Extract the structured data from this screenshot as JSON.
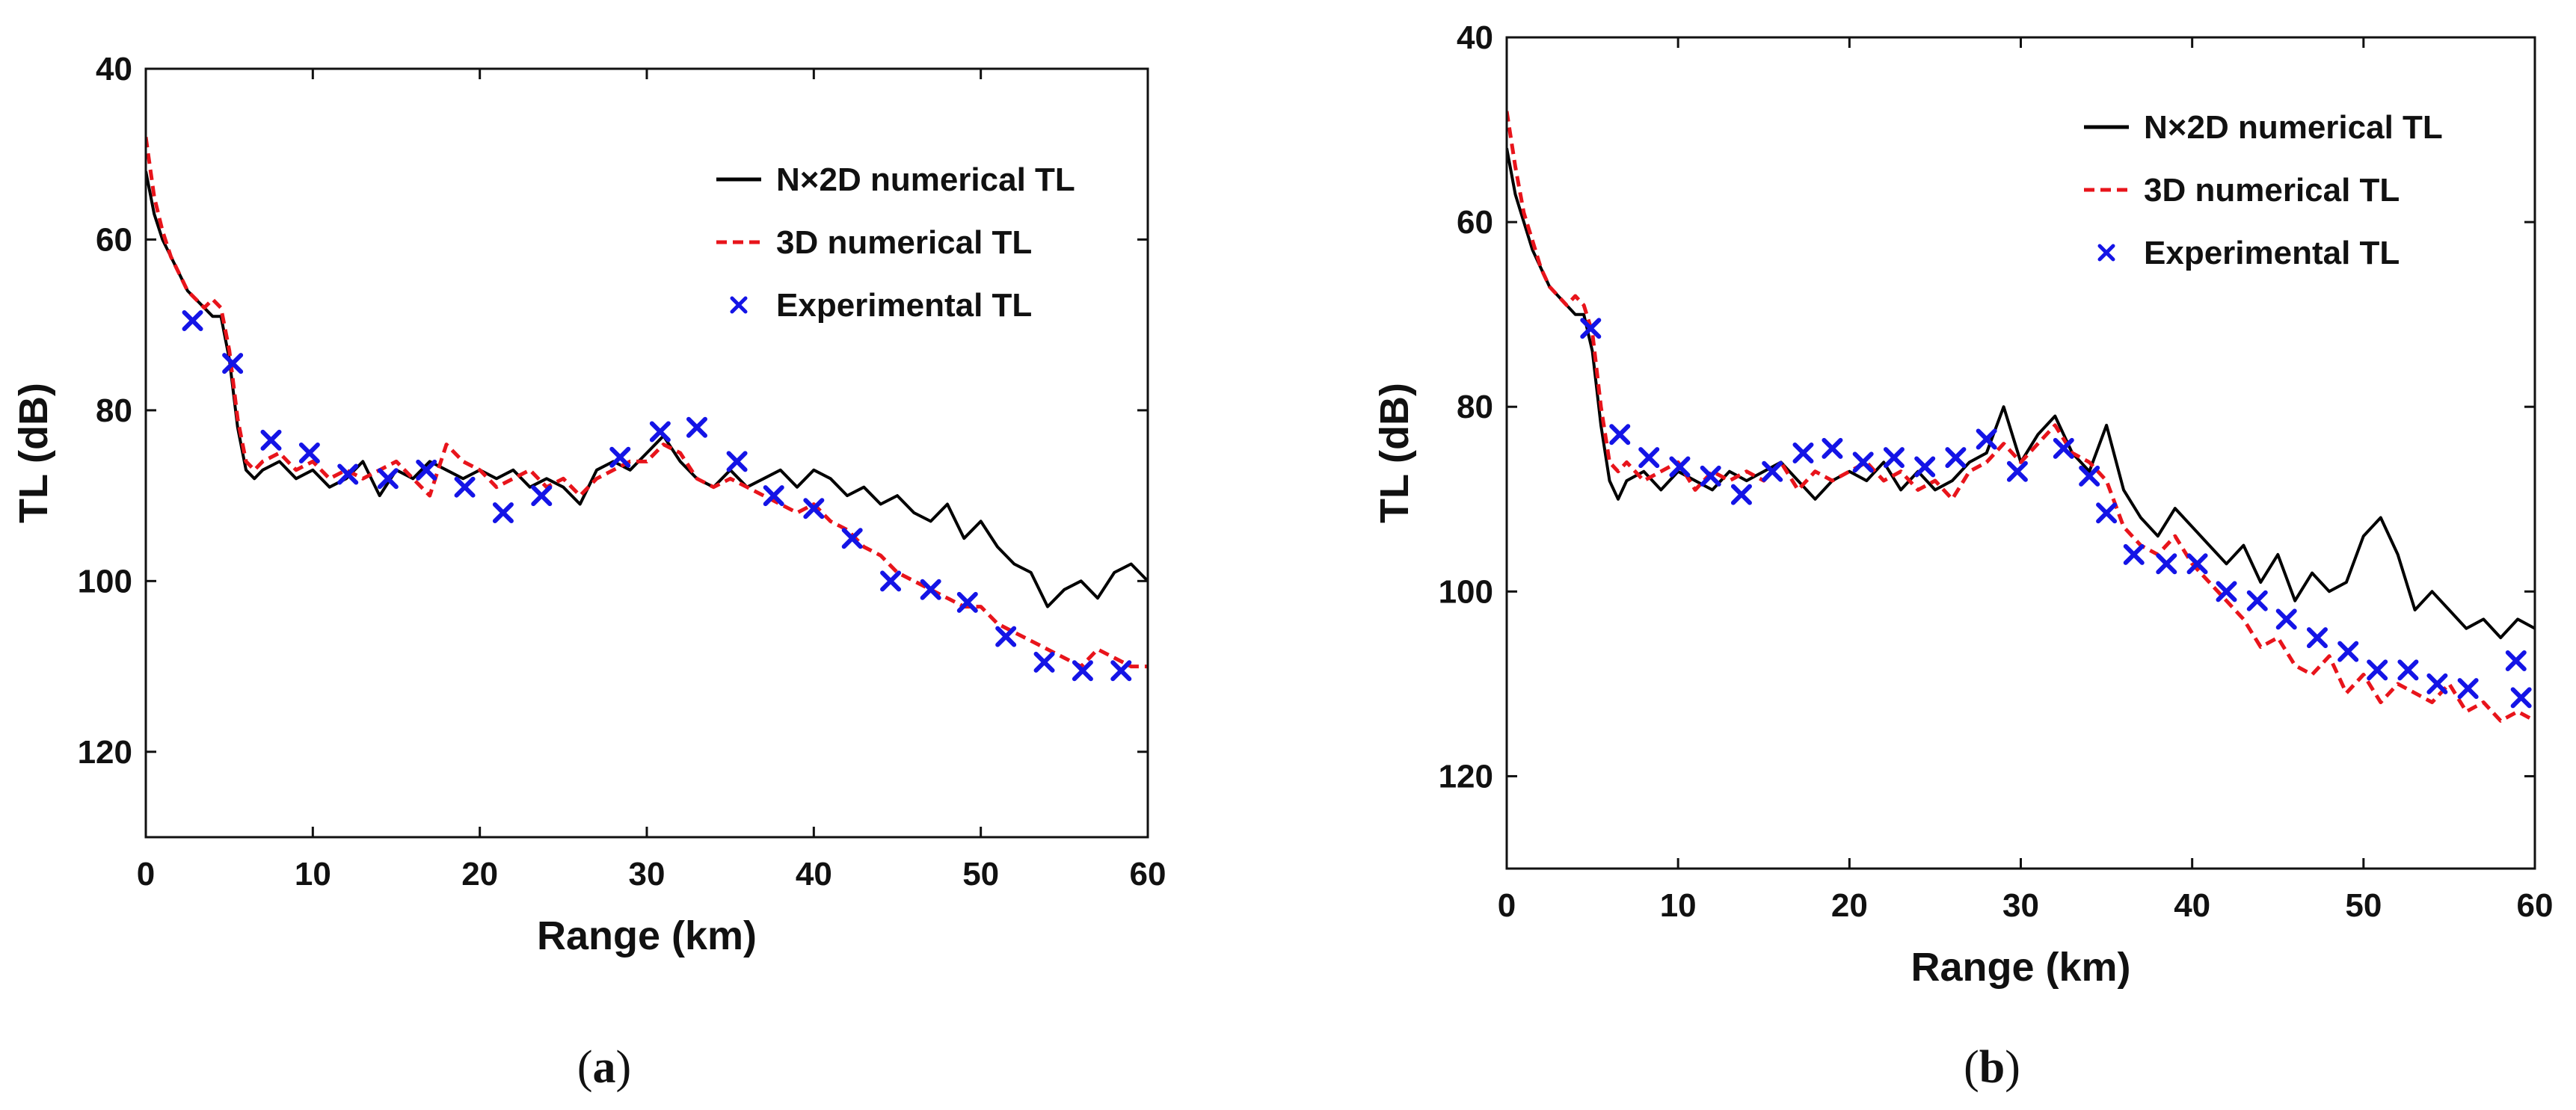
{
  "chart_data": [
    {
      "panel": "a",
      "caption_open": "(",
      "caption_letter": "a",
      "caption_close": ")",
      "type": "line",
      "xlabel": "Range (km)",
      "ylabel": "TL (dB)",
      "xlim": [
        0,
        60
      ],
      "ylim": [
        40,
        130
      ],
      "y_inverted": true,
      "xticks": [
        0,
        10,
        20,
        30,
        40,
        50,
        60
      ],
      "yticks": [
        40,
        60,
        80,
        100,
        120
      ],
      "legend_position": "top-right",
      "series": [
        {
          "name": "N×2D numerical TL",
          "style": "solid",
          "color": "#000000",
          "x": [
            0,
            0.5,
            1,
            1.5,
            2,
            2.5,
            3,
            3.5,
            4,
            4.5,
            5,
            5.5,
            6,
            6.5,
            7,
            8,
            9,
            10,
            11,
            12,
            13,
            14,
            15,
            16,
            17,
            18,
            19,
            20,
            21,
            22,
            23,
            24,
            25,
            26,
            27,
            28,
            29,
            30,
            31,
            32,
            33,
            34,
            35,
            36,
            37,
            38,
            39,
            40,
            41,
            42,
            43,
            44,
            45,
            46,
            47,
            48,
            49,
            50,
            51,
            52,
            53,
            54,
            55,
            56,
            57,
            58,
            59,
            60
          ],
          "y": [
            52,
            57,
            60,
            62,
            64,
            66,
            67,
            68,
            69,
            69,
            74,
            82,
            87,
            88,
            87,
            86,
            88,
            87,
            89,
            88,
            86,
            90,
            87,
            88,
            86,
            87,
            88,
            87,
            88,
            87,
            89,
            88,
            89,
            91,
            87,
            86,
            87,
            85,
            83,
            86,
            88,
            89,
            87,
            89,
            88,
            87,
            89,
            87,
            88,
            90,
            89,
            91,
            90,
            92,
            93,
            91,
            95,
            93,
            96,
            98,
            99,
            103,
            101,
            100,
            102,
            99,
            98,
            100
          ]
        },
        {
          "name": "3D numerical TL",
          "style": "dashed",
          "color": "#e8141b",
          "x": [
            0,
            0.5,
            1,
            1.5,
            2,
            2.5,
            3,
            3.5,
            4,
            4.5,
            5,
            5.5,
            6,
            6.5,
            7,
            8,
            9,
            10,
            11,
            12,
            13,
            14,
            15,
            16,
            17,
            18,
            19,
            20,
            21,
            22,
            23,
            24,
            25,
            26,
            27,
            28,
            29,
            30,
            31,
            32,
            33,
            34,
            35,
            36,
            37,
            38,
            39,
            40,
            41,
            42,
            43,
            44,
            45,
            46,
            47,
            48,
            49,
            50,
            51,
            52,
            53,
            54,
            55,
            56,
            57,
            58,
            59,
            60
          ],
          "y": [
            48,
            55,
            59,
            62,
            64,
            66,
            67,
            68,
            67,
            68,
            73,
            81,
            86,
            87,
            86,
            85,
            87,
            86,
            88,
            87,
            88,
            87,
            86,
            88,
            90,
            84,
            86,
            87,
            89,
            88,
            87,
            89,
            88,
            90,
            88,
            87,
            86,
            86,
            84,
            85,
            88,
            89,
            88,
            89,
            90,
            91,
            92,
            91,
            93,
            94,
            96,
            97,
            99,
            100,
            101,
            102,
            103,
            103,
            105,
            106,
            107,
            108,
            109,
            110,
            108,
            109,
            110,
            110
          ]
        },
        {
          "name": "Experimental TL",
          "style": "markers-x",
          "color": "#1414e6",
          "x": [
            2.8,
            5.2,
            7.5,
            9.8,
            12.1,
            14.5,
            16.8,
            19.1,
            21.4,
            23.7,
            28.4,
            30.8,
            33.0,
            35.4,
            37.6,
            40.0,
            42.3,
            44.6,
            47.0,
            49.2,
            51.5,
            53.8,
            56.1,
            58.4
          ],
          "y": [
            69.5,
            74.5,
            83.5,
            85,
            87.5,
            88,
            87,
            89,
            92,
            90,
            85.5,
            82.5,
            82,
            86,
            90,
            91.5,
            95,
            100,
            101,
            102.5,
            106.5,
            109.5,
            110.5,
            110.5
          ]
        }
      ]
    },
    {
      "panel": "b",
      "caption_open": "(",
      "caption_letter": "b",
      "caption_close": ")",
      "type": "line",
      "xlabel": "Range (km)",
      "ylabel": "TL (dB)",
      "xlim": [
        0,
        60
      ],
      "ylim": [
        40,
        130
      ],
      "y_inverted": true,
      "xticks": [
        0,
        10,
        20,
        30,
        40,
        50,
        60
      ],
      "yticks": [
        40,
        60,
        80,
        100,
        120
      ],
      "legend_position": "top-right",
      "series": [
        {
          "name": "N×2D numerical TL",
          "style": "solid",
          "color": "#000000",
          "x": [
            0,
            0.5,
            1,
            1.5,
            2,
            2.5,
            3,
            3.5,
            4,
            4.5,
            5,
            5.5,
            6,
            6.5,
            7,
            8,
            9,
            10,
            11,
            12,
            13,
            14,
            15,
            16,
            17,
            18,
            19,
            20,
            21,
            22,
            23,
            24,
            25,
            26,
            27,
            28,
            29,
            30,
            31,
            32,
            33,
            34,
            35,
            36,
            37,
            38,
            39,
            40,
            41,
            42,
            43,
            44,
            45,
            46,
            47,
            48,
            49,
            50,
            51,
            52,
            53,
            54,
            55,
            56,
            57,
            58,
            59,
            60
          ],
          "y": [
            52,
            57,
            60,
            63,
            65,
            67,
            68,
            69,
            70,
            70,
            74,
            82,
            88,
            90,
            88,
            87,
            89,
            87,
            88,
            89,
            87,
            88,
            87,
            86,
            88,
            90,
            88,
            87,
            88,
            86,
            89,
            87,
            89,
            88,
            86,
            85,
            80,
            86,
            83,
            81,
            85,
            87,
            82,
            89,
            92,
            94,
            91,
            93,
            95,
            97,
            95,
            99,
            96,
            101,
            98,
            100,
            99,
            94,
            92,
            96,
            102,
            100,
            102,
            104,
            103,
            105,
            103,
            104
          ]
        },
        {
          "name": "3D numerical TL",
          "style": "dashed",
          "color": "#e8141b",
          "x": [
            0,
            0.5,
            1,
            1.5,
            2,
            2.5,
            3,
            3.5,
            4,
            4.5,
            5,
            5.5,
            6,
            6.5,
            7,
            8,
            9,
            10,
            11,
            12,
            13,
            14,
            15,
            16,
            17,
            18,
            19,
            20,
            21,
            22,
            23,
            24,
            25,
            26,
            27,
            28,
            29,
            30,
            31,
            32,
            33,
            34,
            35,
            36,
            37,
            38,
            39,
            40,
            41,
            42,
            43,
            44,
            45,
            46,
            47,
            48,
            49,
            50,
            51,
            52,
            53,
            54,
            55,
            56,
            57,
            58,
            59,
            60
          ],
          "y": [
            48,
            54,
            59,
            62,
            65,
            67,
            68,
            69,
            68,
            69,
            72,
            80,
            86,
            87,
            86,
            88,
            87,
            86,
            89,
            87,
            88,
            87,
            88,
            86,
            89,
            87,
            88,
            87,
            86,
            88,
            87,
            89,
            88,
            90,
            87,
            86,
            84,
            86,
            84,
            82,
            85,
            86,
            88,
            93,
            95,
            96,
            94,
            97,
            99,
            101,
            103,
            106,
            105,
            108,
            109,
            107,
            111,
            109,
            112,
            110,
            111,
            112,
            110,
            113,
            112,
            114,
            113,
            114
          ]
        },
        {
          "name": "Experimental TL",
          "style": "markers-x",
          "color": "#1414e6",
          "x": [
            4.9,
            6.6,
            8.3,
            10.1,
            11.9,
            13.7,
            15.5,
            17.3,
            19.0,
            20.8,
            22.6,
            24.4,
            26.2,
            28.0,
            29.8,
            32.5,
            34.0,
            35.0,
            36.6,
            38.5,
            40.3,
            42.0,
            43.8,
            45.5,
            47.3,
            49.1,
            50.8,
            52.6,
            54.3,
            56.1,
            58.9,
            59.2
          ],
          "y": [
            71.5,
            83,
            85.5,
            86.5,
            87.5,
            89.5,
            87,
            85,
            84.5,
            86,
            85.5,
            86.5,
            85.5,
            83.5,
            87,
            84.5,
            87.5,
            91.5,
            96,
            97,
            97,
            100,
            101,
            103,
            105,
            106.5,
            108.5,
            108.5,
            110,
            110.5,
            107.5,
            111.5
          ]
        }
      ]
    }
  ]
}
